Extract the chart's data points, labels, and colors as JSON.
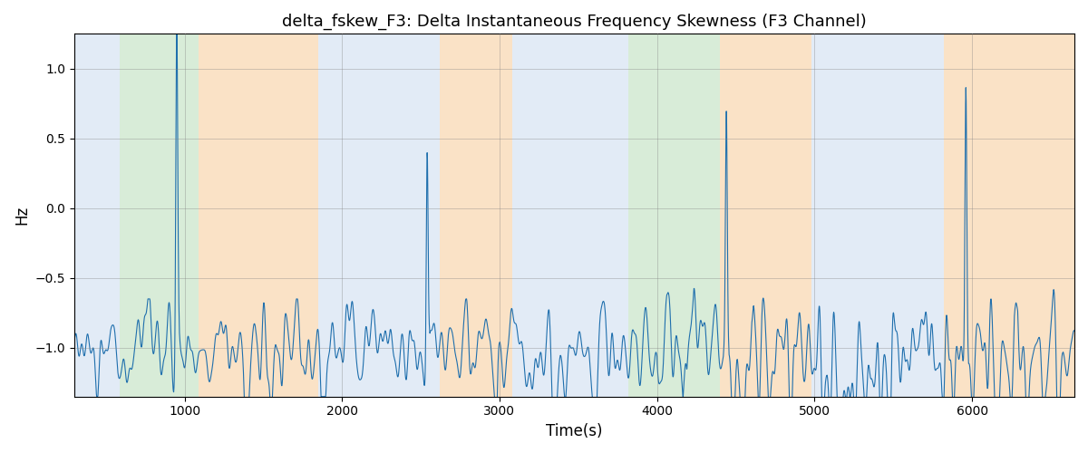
{
  "title": "delta_fskew_F3: Delta Instantaneous Frequency Skewness (F3 Channel)",
  "xlabel": "Time(s)",
  "ylabel": "Hz",
  "xlim": [
    300,
    6650
  ],
  "ylim": [
    -1.35,
    1.25
  ],
  "yticks": [
    -1.0,
    -0.5,
    0.0,
    0.5,
    1.0
  ],
  "xticks": [
    1000,
    2000,
    3000,
    4000,
    5000,
    6000
  ],
  "line_color": "#1f6fad",
  "line_width": 0.8,
  "background_regions": [
    {
      "xmin": 300,
      "xmax": 590,
      "color": "#aec6e8",
      "alpha": 0.35
    },
    {
      "xmin": 590,
      "xmax": 1090,
      "color": "#90c990",
      "alpha": 0.35
    },
    {
      "xmin": 1090,
      "xmax": 1850,
      "color": "#f5c082",
      "alpha": 0.45
    },
    {
      "xmin": 1850,
      "xmax": 2620,
      "color": "#aec6e8",
      "alpha": 0.35
    },
    {
      "xmin": 2620,
      "xmax": 3080,
      "color": "#f5c082",
      "alpha": 0.45
    },
    {
      "xmin": 3080,
      "xmax": 3820,
      "color": "#aec6e8",
      "alpha": 0.35
    },
    {
      "xmin": 3820,
      "xmax": 4400,
      "color": "#90c990",
      "alpha": 0.35
    },
    {
      "xmin": 4400,
      "xmax": 4980,
      "color": "#f5c082",
      "alpha": 0.45
    },
    {
      "xmin": 4980,
      "xmax": 5820,
      "color": "#aec6e8",
      "alpha": 0.35
    },
    {
      "xmin": 5820,
      "xmax": 6650,
      "color": "#f5c082",
      "alpha": 0.45
    }
  ],
  "seed": 42,
  "t_start": 300,
  "t_end": 6650,
  "n_points": 3300
}
